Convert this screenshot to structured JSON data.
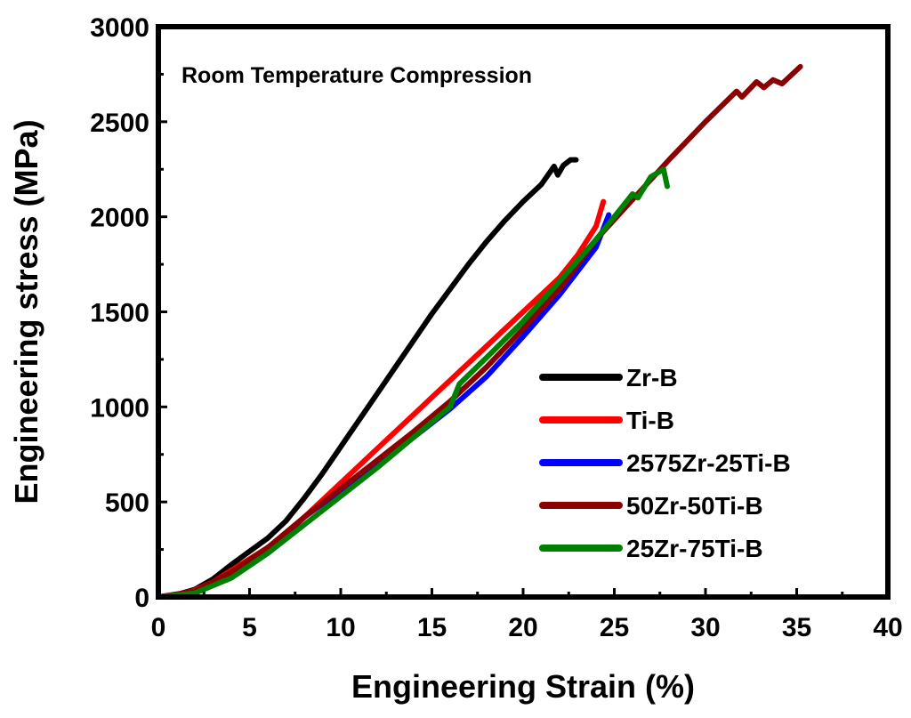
{
  "chart_data": {
    "type": "line",
    "annotation": "Room Temperature Compression",
    "xlabel": "Engineering Strain (%)",
    "ylabel": "Engineering stress (MPa)",
    "xlim": [
      0,
      40
    ],
    "ylim": [
      0,
      3000
    ],
    "xticks": [
      0,
      5,
      10,
      15,
      20,
      25,
      30,
      35,
      40
    ],
    "yticks": [
      0,
      500,
      1000,
      1500,
      2000,
      2500,
      3000
    ],
    "grid": false,
    "legend_position": "bottom-right",
    "series": [
      {
        "name": "Zr-B",
        "color": "#000000",
        "x": [
          0,
          1,
          2,
          3,
          4,
          5,
          6,
          7,
          8,
          9,
          10,
          11,
          12,
          13,
          14,
          15,
          16,
          17,
          18,
          19,
          20,
          21,
          21.7,
          21.9,
          22.2,
          22.6,
          22.9
        ],
        "y": [
          0,
          12,
          40,
          95,
          170,
          240,
          310,
          400,
          520,
          650,
          790,
          930,
          1070,
          1210,
          1350,
          1490,
          1620,
          1750,
          1870,
          1980,
          2080,
          2170,
          2265,
          2220,
          2270,
          2300,
          2300
        ]
      },
      {
        "name": "Ti-B",
        "color": "#ff0000",
        "x": [
          0,
          1,
          2,
          3,
          4,
          5,
          6,
          7,
          8,
          9,
          10,
          11,
          12,
          13,
          14,
          15,
          16,
          17,
          18,
          19,
          20,
          21,
          22,
          23,
          24,
          24.4
        ],
        "y": [
          0,
          10,
          35,
          80,
          140,
          200,
          260,
          330,
          420,
          510,
          600,
          690,
          780,
          870,
          960,
          1050,
          1140,
          1230,
          1320,
          1410,
          1500,
          1590,
          1680,
          1800,
          1950,
          2080
        ]
      },
      {
        "name": "2575Zr-25Ti-B",
        "color": "#0000ff",
        "x": [
          0,
          2,
          4,
          6,
          8,
          10,
          12,
          14,
          16,
          18,
          20,
          22,
          24,
          24.7
        ],
        "y": [
          0,
          28,
          120,
          250,
          420,
          560,
          700,
          840,
          990,
          1160,
          1370,
          1590,
          1840,
          2010
        ]
      },
      {
        "name": "50Zr-50Ti-B",
        "color": "#8b0000",
        "x": [
          0,
          2,
          4,
          6,
          8,
          10,
          12,
          14,
          16,
          18,
          20,
          22,
          24,
          26,
          28,
          30,
          31.7,
          32.0,
          32.8,
          33.2,
          33.7,
          34.2,
          35.2
        ],
        "y": [
          0,
          30,
          130,
          260,
          420,
          570,
          720,
          870,
          1030,
          1210,
          1410,
          1620,
          1880,
          2090,
          2300,
          2500,
          2660,
          2630,
          2710,
          2680,
          2720,
          2700,
          2790
        ]
      },
      {
        "name": "25Zr-75Ti-B",
        "color": "#008000",
        "x": [
          0,
          2,
          4,
          6,
          8,
          10,
          12,
          14,
          16,
          16.5,
          18,
          20,
          22,
          24,
          26,
          26.3,
          27.0,
          27.7,
          27.9
        ],
        "y": [
          0,
          20,
          100,
          230,
          380,
          530,
          680,
          840,
          1000,
          1120,
          1260,
          1450,
          1660,
          1880,
          2120,
          2100,
          2210,
          2250,
          2160
        ]
      }
    ]
  }
}
